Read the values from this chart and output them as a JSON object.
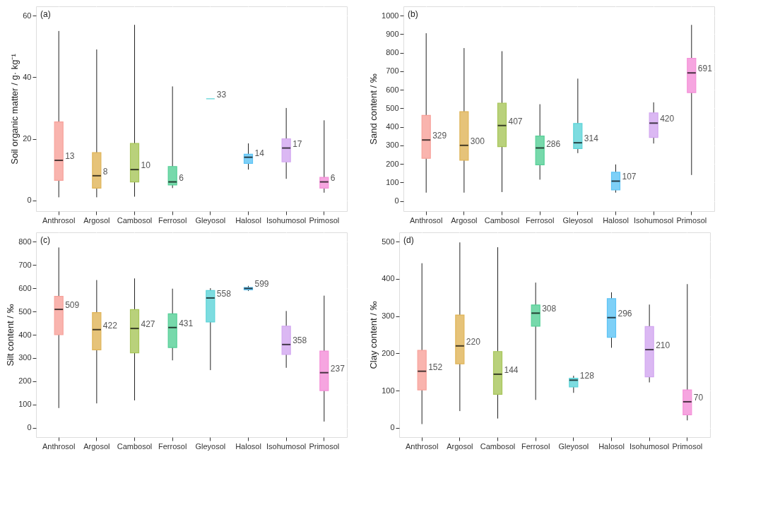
{
  "chart_data": [
    {
      "type": "box",
      "ylabel": "Soil organic matter / g· kg⁻¹",
      "annotations": [
        "(a)"
      ],
      "categories": [
        "Anthrosol",
        "Argosol",
        "Cambosol",
        "Ferrosol",
        "Gleyosol",
        "Halosol",
        "Isohumosol",
        "Primosol"
      ],
      "colors": [
        "#f8a19a",
        "#e0b457",
        "#a8c65a",
        "#55cf96",
        "#5cd3d8",
        "#5ec4f5",
        "#d2a6f0",
        "#f48fd8"
      ],
      "ylim": [
        -3.5,
        63
      ],
      "yticks": [
        0,
        20,
        40,
        60
      ],
      "grid": true,
      "boxes": [
        {
          "low": 1,
          "q1": 6.5,
          "median": 13,
          "q3": 25.5,
          "high": 55
        },
        {
          "low": 1,
          "q1": 4,
          "median": 8,
          "q3": 15.5,
          "high": 49
        },
        {
          "low": 1.2,
          "q1": 6,
          "median": 10,
          "q3": 18.5,
          "high": 57
        },
        {
          "low": 4,
          "q1": 5,
          "median": 6,
          "q3": 11,
          "high": 37
        },
        {
          "low": 33,
          "q1": 33,
          "median": 33,
          "q3": 33,
          "high": 33
        },
        {
          "low": 10,
          "q1": 12,
          "median": 14,
          "q3": 15,
          "high": 18.5
        },
        {
          "low": 7,
          "q1": 12.5,
          "median": 17,
          "q3": 20,
          "high": 30
        },
        {
          "low": 2.5,
          "q1": 4,
          "median": 6,
          "q3": 7.5,
          "high": 26
        }
      ],
      "value_labels": [
        "13",
        "8",
        "10",
        "6",
        "33",
        "14",
        "17",
        "6"
      ]
    },
    {
      "type": "box",
      "ylabel": "Sand content / ‰",
      "annotations": [
        "(b)"
      ],
      "categories": [
        "Anthrosol",
        "Argosol",
        "Cambosol",
        "Ferrosol",
        "Gleyosol",
        "Halosol",
        "Isohumosol",
        "Primosol"
      ],
      "colors": [
        "#f8a19a",
        "#e0b457",
        "#a8c65a",
        "#55cf96",
        "#5cd3d8",
        "#5ec4f5",
        "#d2a6f0",
        "#f48fd8"
      ],
      "ylim": [
        -55,
        1050
      ],
      "yticks": [
        0,
        100,
        200,
        300,
        400,
        500,
        600,
        700,
        800,
        900,
        1000
      ],
      "grid": true,
      "boxes": [
        {
          "low": 45,
          "q1": 230,
          "median": 329,
          "q3": 462,
          "high": 905
        },
        {
          "low": 45,
          "q1": 220,
          "median": 300,
          "q3": 482,
          "high": 825
        },
        {
          "low": 48,
          "q1": 293,
          "median": 407,
          "q3": 528,
          "high": 808
        },
        {
          "low": 115,
          "q1": 195,
          "median": 286,
          "q3": 350,
          "high": 522
        },
        {
          "low": 258,
          "q1": 283,
          "median": 314,
          "q3": 418,
          "high": 660
        },
        {
          "low": 45,
          "q1": 60,
          "median": 107,
          "q3": 155,
          "high": 197
        },
        {
          "low": 310,
          "q1": 343,
          "median": 420,
          "q3": 475,
          "high": 532
        },
        {
          "low": 140,
          "q1": 585,
          "median": 691,
          "q3": 770,
          "high": 950
        }
      ],
      "value_labels": [
        "329",
        "300",
        "407",
        "286",
        "314",
        "107",
        "420",
        "691"
      ]
    },
    {
      "type": "box",
      "ylabel": "Silt content / ‰",
      "annotations": [
        "(c)"
      ],
      "categories": [
        "Anthrosol",
        "Argosol",
        "Cambosol",
        "Ferrosol",
        "Gleyosol",
        "Halosol",
        "Isohumosol",
        "Primosol"
      ],
      "colors": [
        "#f8a19a",
        "#e0b457",
        "#a8c65a",
        "#55cf96",
        "#5cd3d8",
        "#5ec4f5",
        "#d2a6f0",
        "#f48fd8"
      ],
      "ylim": [
        -40,
        840
      ],
      "yticks": [
        0,
        100,
        200,
        300,
        400,
        500,
        600,
        700,
        800
      ],
      "grid": true,
      "boxes": [
        {
          "low": 85,
          "q1": 400,
          "median": 509,
          "q3": 565,
          "high": 775
        },
        {
          "low": 105,
          "q1": 335,
          "median": 422,
          "q3": 495,
          "high": 635
        },
        {
          "low": 118,
          "q1": 322,
          "median": 427,
          "q3": 508,
          "high": 642
        },
        {
          "low": 290,
          "q1": 345,
          "median": 431,
          "q3": 490,
          "high": 598
        },
        {
          "low": 248,
          "q1": 455,
          "median": 558,
          "q3": 590,
          "high": 600
        },
        {
          "low": 588,
          "q1": 593,
          "median": 599,
          "q3": 603,
          "high": 610
        },
        {
          "low": 258,
          "q1": 315,
          "median": 358,
          "q3": 437,
          "high": 502
        },
        {
          "low": 27,
          "q1": 160,
          "median": 237,
          "q3": 330,
          "high": 568
        }
      ],
      "value_labels": [
        "509",
        "422",
        "427",
        "431",
        "558",
        "599",
        "358",
        "237"
      ]
    },
    {
      "type": "box",
      "ylabel": "Clay content / ‰",
      "annotations": [
        "(d)"
      ],
      "categories": [
        "Anthrosol",
        "Argosol",
        "Cambosol",
        "Ferrosol",
        "Gleyosol",
        "Halosol",
        "Isohumosol",
        "Primosol"
      ],
      "colors": [
        "#f8a19a",
        "#e0b457",
        "#a8c65a",
        "#55cf96",
        "#5cd3d8",
        "#5ec4f5",
        "#d2a6f0",
        "#f48fd8"
      ],
      "ylim": [
        -25,
        525
      ],
      "yticks": [
        0,
        100,
        200,
        300,
        400,
        500
      ],
      "grid": true,
      "boxes": [
        {
          "low": 10,
          "q1": 102,
          "median": 152,
          "q3": 208,
          "high": 442
        },
        {
          "low": 45,
          "q1": 172,
          "median": 220,
          "q3": 303,
          "high": 498
        },
        {
          "low": 25,
          "q1": 90,
          "median": 144,
          "q3": 205,
          "high": 485
        },
        {
          "low": 75,
          "q1": 273,
          "median": 308,
          "q3": 330,
          "high": 390
        },
        {
          "low": 94,
          "q1": 110,
          "median": 128,
          "q3": 133,
          "high": 140
        },
        {
          "low": 215,
          "q1": 243,
          "median": 296,
          "q3": 347,
          "high": 364
        },
        {
          "low": 122,
          "q1": 137,
          "median": 210,
          "q3": 272,
          "high": 331
        },
        {
          "low": 20,
          "q1": 35,
          "median": 70,
          "q3": 102,
          "high": 386
        }
      ],
      "value_labels": [
        "152",
        "220",
        "144",
        "308",
        "128",
        "296",
        "210",
        "70"
      ]
    }
  ]
}
